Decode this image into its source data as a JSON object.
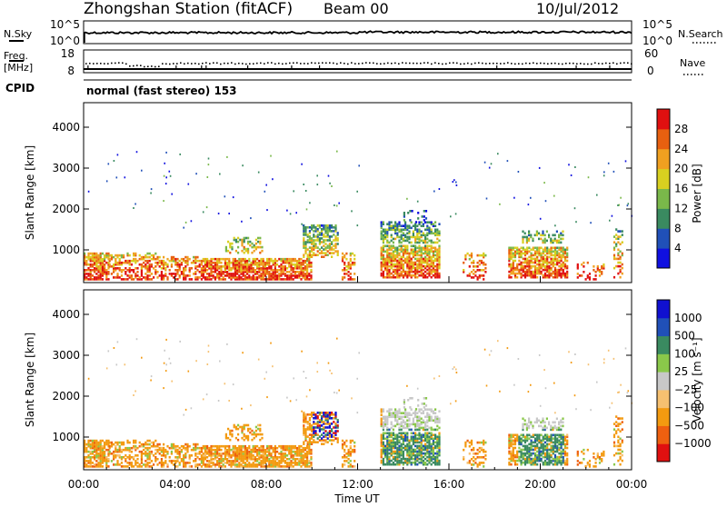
{
  "header": {
    "station": "Zhongshan Station (fitACF)",
    "beam": "Beam 00",
    "date": "10/Jul/2012"
  },
  "nsky": {
    "label": "N.Sky",
    "ytick_top": "10^5",
    "ytick_bottom": "10^0",
    "right_tick_top": "10^5",
    "right_tick_bottom": "10^0",
    "right_label": "N.Search"
  },
  "freq": {
    "label_line1": "Freq.",
    "label_line2": "[MHz]",
    "ytick_top": "18",
    "ytick_bottom": "8",
    "right_tick_top": "60",
    "right_tick_bottom": "0",
    "right_label": "Nave"
  },
  "cpid": {
    "label": "CPID",
    "text": "normal (fast stereo) 153"
  },
  "colors": {
    "power": [
      "#1010e0",
      "#2050b8",
      "#3a8a60",
      "#7ab84a",
      "#d8d020",
      "#f0a020",
      "#e86010",
      "#e01010"
    ],
    "velocity": [
      "#e01010",
      "#ee6010",
      "#f39a10",
      "#f6c070",
      "#c8c8c8",
      "#8ac84a",
      "#3a8a60",
      "#2050b8",
      "#1010d0"
    ]
  },
  "chart_data": [
    {
      "type": "heatmap",
      "ylabel": "Slant Range [km]",
      "ylim": [
        200,
        4600
      ],
      "yticks": [
        "1000",
        "2000",
        "3000",
        "4000"
      ],
      "colorbar_label": "Power [dB]",
      "colorbar_ticks": [
        "4",
        "8",
        "12",
        "16",
        "20",
        "24",
        "28"
      ],
      "colorbar_range": [
        0,
        32
      ]
    },
    {
      "type": "heatmap",
      "ylabel": "Slant Range [km]",
      "xlabel": "Time UT",
      "ylim": [
        200,
        4600
      ],
      "yticks": [
        "1000",
        "2000",
        "3000",
        "4000"
      ],
      "xticks": [
        "00:00",
        "04:00",
        "08:00",
        "12:00",
        "16:00",
        "20:00",
        "00:00"
      ],
      "xlim": [
        "00:00",
        "24:00"
      ],
      "colorbar_label": "Velocity [m s⁻¹]",
      "colorbar_ticks": [
        "1000",
        "500",
        "100",
        "25",
        "−25",
        "−100",
        "−500",
        "−1000"
      ]
    }
  ]
}
